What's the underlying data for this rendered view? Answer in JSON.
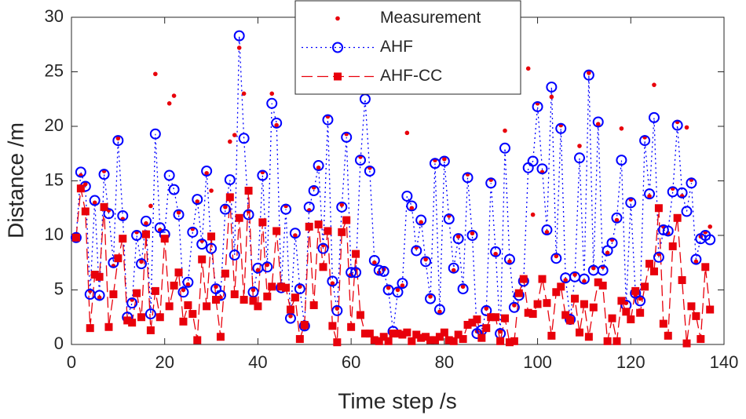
{
  "chart_data": {
    "type": "line",
    "xlabel": "Time step /s",
    "ylabel": "Distance /m",
    "xlim": [
      0,
      140
    ],
    "xticks": [
      0,
      20,
      40,
      60,
      80,
      100,
      120,
      140
    ],
    "ylim": [
      0,
      30
    ],
    "yticks": [
      0,
      5,
      10,
      15,
      20,
      25,
      30
    ],
    "legend": "north",
    "grid": false,
    "x": [
      1,
      2,
      3,
      4,
      5,
      6,
      7,
      8,
      9,
      10,
      11,
      12,
      13,
      14,
      15,
      16,
      17,
      18,
      19,
      20,
      21,
      22,
      23,
      24,
      25,
      26,
      27,
      28,
      29,
      30,
      31,
      32,
      33,
      34,
      35,
      36,
      37,
      38,
      39,
      40,
      41,
      42,
      43,
      44,
      45,
      46,
      47,
      48,
      49,
      50,
      51,
      52,
      53,
      54,
      55,
      56,
      57,
      58,
      59,
      60,
      61,
      62,
      63,
      64,
      65,
      66,
      67,
      68,
      69,
      70,
      71,
      72,
      73,
      74,
      75,
      76,
      77,
      78,
      79,
      80,
      81,
      82,
      83,
      84,
      85,
      86,
      87,
      88,
      89,
      90,
      91,
      92,
      93,
      94,
      95,
      96,
      97,
      98,
      99,
      100,
      101,
      102,
      103,
      104,
      105,
      106,
      107,
      108,
      109,
      110,
      111,
      112,
      113,
      114,
      115,
      116,
      117,
      118,
      119,
      120,
      121,
      122,
      123,
      124,
      125,
      126,
      127,
      128,
      129,
      130,
      131,
      132,
      133,
      134,
      135,
      136,
      137
    ],
    "series": [
      {
        "name": "Measurement",
        "color": "#e8000b",
        "marker": "dot",
        "line": "none",
        "values": [
          9.8,
          15.5,
          14.7,
          4.9,
          13.0,
          4.3,
          15.9,
          12.3,
          7.2,
          18.9,
          11.5,
          2.3,
          4.1,
          10.3,
          7.6,
          11.1,
          12.7,
          24.8,
          10.5,
          9.8,
          22.1,
          22.8,
          12.1,
          5.0,
          5.5,
          10.6,
          13.1,
          9.5,
          15.7,
          14.1,
          5.3,
          4.3,
          12.6,
          18.6,
          19.2,
          27.2,
          23.0,
          12.2,
          5.0,
          6.8,
          15.8,
          7.3,
          23.0,
          20.1,
          5.4,
          12.7,
          2.6,
          10.0,
          5.3,
          1.5,
          12.3,
          14.4,
          16.2,
          9.1,
          20.9,
          5.6,
          3.3,
          12.8,
          19.3,
          6.4,
          6.9,
          17.2,
          24.3,
          16.2,
          7.5,
          6.6,
          6.9,
          5.2,
          1.0,
          5.0,
          5.4,
          19.4,
          12.5,
          8.9,
          11.2,
          7.8,
          4.4,
          16.9,
          3.0,
          17.0,
          11.8,
          6.8,
          9.9,
          5.3,
          15.6,
          10.2,
          1.2,
          1.1,
          3.3,
          15.1,
          8.3,
          1.2,
          19.6,
          7.6,
          3.6,
          4.7,
          6.0,
          25.3,
          11.9,
          22.1,
          15.8,
          10.3,
          22.7,
          8.1,
          20.1,
          5.9,
          2.5,
          6.4,
          18.2,
          5.8,
          24.9,
          7.0,
          20.2,
          7.1,
          8.4,
          9.6,
          11.4,
          19.8,
          3.8,
          13.3,
          4.5,
          4.2,
          19.0,
          13.6,
          23.8,
          8.3,
          10.8,
          10.2,
          14.3,
          20.4,
          13.6,
          19.9,
          15.1,
          7.6,
          9.9,
          10.3,
          10.8
        ]
      },
      {
        "name": "AHF",
        "color": "#0000ff",
        "marker": "circle",
        "line": "dotted",
        "values": [
          9.8,
          15.8,
          14.5,
          4.6,
          13.2,
          4.5,
          15.6,
          12.0,
          7.5,
          18.7,
          11.8,
          2.5,
          3.8,
          10.0,
          7.4,
          11.3,
          2.8,
          19.3,
          10.7,
          10.1,
          15.5,
          14.2,
          11.9,
          4.8,
          5.7,
          10.3,
          13.3,
          9.2,
          15.9,
          8.8,
          5.1,
          4.5,
          12.4,
          15.1,
          8.2,
          28.3,
          18.9,
          11.9,
          4.8,
          7.0,
          15.5,
          7.1,
          22.1,
          20.3,
          5.2,
          12.4,
          2.4,
          10.2,
          5.1,
          1.7,
          12.6,
          14.1,
          16.4,
          8.8,
          20.6,
          5.8,
          3.1,
          12.6,
          19.0,
          6.6,
          6.6,
          16.9,
          22.5,
          15.9,
          7.7,
          6.8,
          6.7,
          5.0,
          1.2,
          4.8,
          5.6,
          13.6,
          12.7,
          8.6,
          11.4,
          7.6,
          4.2,
          16.6,
          3.2,
          16.8,
          11.5,
          7.0,
          9.7,
          5.1,
          15.3,
          10.0,
          1.0,
          1.3,
          3.1,
          14.8,
          8.5,
          1.0,
          18.0,
          7.8,
          3.4,
          4.5,
          5.8,
          16.2,
          16.8,
          21.8,
          16.1,
          10.5,
          23.6,
          7.9,
          19.8,
          6.1,
          2.3,
          6.2,
          17.1,
          6.0,
          24.7,
          6.8,
          20.4,
          6.8,
          8.6,
          9.3,
          11.6,
          16.9,
          3.6,
          13.0,
          4.7,
          4.0,
          18.7,
          13.8,
          20.8,
          8.0,
          10.5,
          10.4,
          14.0,
          20.1,
          13.9,
          12.2,
          14.8,
          7.8,
          9.7,
          10.0,
          9.6
        ]
      },
      {
        "name": "AHF-CC",
        "color": "#e8000b",
        "marker": "square",
        "line": "dashed",
        "values": [
          9.8,
          14.3,
          12.2,
          1.5,
          6.4,
          6.2,
          12.6,
          1.6,
          4.6,
          7.9,
          9.7,
          2.2,
          2.0,
          4.7,
          2.5,
          10.1,
          1.3,
          4.9,
          2.5,
          9.7,
          3.5,
          5.4,
          6.6,
          2.1,
          3.6,
          2.8,
          0.4,
          7.8,
          3.5,
          9.9,
          4.1,
          0.7,
          6.5,
          13.5,
          4.6,
          11.6,
          4.1,
          14.1,
          4.0,
          3.5,
          11.2,
          4.4,
          5.3,
          10.4,
          5.3,
          5.2,
          3.2,
          4.3,
          0.5,
          1.8,
          10.8,
          3.6,
          11.0,
          7.1,
          10.4,
          1.7,
          0.2,
          10.3,
          11.4,
          1.6,
          8.3,
          2.7,
          1.0,
          1.0,
          0.4,
          0.3,
          0.7,
          0.3,
          1.0,
          1.0,
          0.9,
          1.1,
          0.3,
          0.9,
          0.6,
          0.7,
          0.4,
          0.4,
          0.7,
          1.1,
          0.4,
          0.3,
          0.9,
          0.5,
          1.8,
          2.0,
          2.3,
          0.6,
          1.5,
          2.5,
          2.5,
          0.3,
          2.4,
          0.2,
          0.3,
          4.7,
          6.0,
          2.9,
          2.8,
          3.7,
          6.0,
          3.8,
          0.8,
          4.8,
          5.3,
          2.7,
          2.2,
          4.2,
          1.1,
          3.7,
          0.7,
          3.4,
          5.7,
          5.4,
          0.3,
          2.4,
          0.3,
          4.0,
          3.0,
          2.3,
          4.9,
          2.9,
          5.3,
          7.4,
          6.7,
          12.5,
          1.9,
          0.8,
          9.0,
          11.6,
          5.9,
          0.1,
          3.5,
          2.6,
          0.5,
          7.1,
          3.2
        ]
      }
    ]
  }
}
